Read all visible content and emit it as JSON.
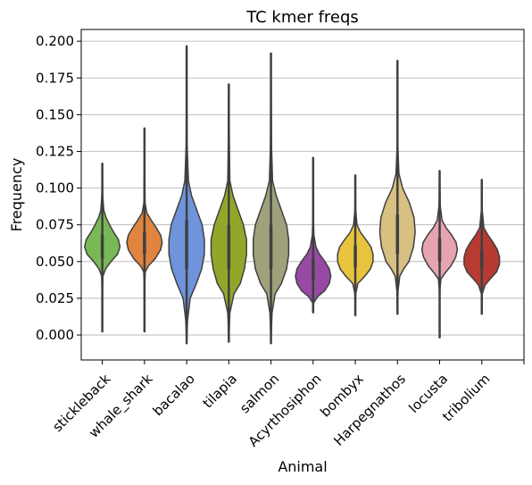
{
  "chart_data": {
    "type": "violin",
    "title": "TC kmer freqs",
    "xlabel": "Animal",
    "ylabel": "Frequency",
    "ylim": [
      -0.017,
      0.208
    ],
    "yticks": [
      "0.000",
      "0.025",
      "0.050",
      "0.075",
      "0.100",
      "0.125",
      "0.150",
      "0.175",
      "0.200"
    ],
    "grid": "horizontal",
    "series": [
      {
        "name": "stickleback",
        "color": "#78b956",
        "min": 0.002,
        "max": 0.117,
        "q1": 0.052,
        "median": 0.06,
        "q3": 0.068,
        "profile": [
          [
            0.002,
            0.0
          ],
          [
            0.03,
            0.01
          ],
          [
            0.04,
            0.03
          ],
          [
            0.045,
            0.16
          ],
          [
            0.05,
            0.42
          ],
          [
            0.055,
            0.74
          ],
          [
            0.06,
            0.86
          ],
          [
            0.065,
            0.78
          ],
          [
            0.07,
            0.55
          ],
          [
            0.075,
            0.35
          ],
          [
            0.08,
            0.18
          ],
          [
            0.085,
            0.07
          ],
          [
            0.095,
            0.02
          ],
          [
            0.117,
            0.0
          ]
        ]
      },
      {
        "name": "whale_shark",
        "color": "#e0843f",
        "min": 0.002,
        "max": 0.141,
        "q1": 0.055,
        "median": 0.063,
        "q3": 0.07,
        "profile": [
          [
            0.002,
            0.0
          ],
          [
            0.035,
            0.01
          ],
          [
            0.043,
            0.04
          ],
          [
            0.047,
            0.2
          ],
          [
            0.052,
            0.55
          ],
          [
            0.058,
            0.82
          ],
          [
            0.063,
            0.9
          ],
          [
            0.068,
            0.82
          ],
          [
            0.073,
            0.6
          ],
          [
            0.078,
            0.35
          ],
          [
            0.083,
            0.12
          ],
          [
            0.09,
            0.03
          ],
          [
            0.11,
            0.01
          ],
          [
            0.141,
            0.0
          ]
        ]
      },
      {
        "name": "bacalao",
        "color": "#6f94dc",
        "min": -0.006,
        "max": 0.197,
        "q1": 0.045,
        "median": 0.06,
        "q3": 0.078,
        "profile": [
          [
            -0.006,
            0.0
          ],
          [
            0.01,
            0.02
          ],
          [
            0.025,
            0.08
          ],
          [
            0.035,
            0.22
          ],
          [
            0.045,
            0.34
          ],
          [
            0.055,
            0.4
          ],
          [
            0.065,
            0.4
          ],
          [
            0.075,
            0.35
          ],
          [
            0.085,
            0.23
          ],
          [
            0.095,
            0.11
          ],
          [
            0.105,
            0.04
          ],
          [
            0.13,
            0.01
          ],
          [
            0.197,
            0.0
          ]
        ]
      },
      {
        "name": "tilapia",
        "color": "#92a72a",
        "min": -0.005,
        "max": 0.171,
        "q1": 0.045,
        "median": 0.06,
        "q3": 0.075,
        "profile": [
          [
            -0.005,
            0.0
          ],
          [
            0.015,
            0.02
          ],
          [
            0.028,
            0.1
          ],
          [
            0.035,
            0.22
          ],
          [
            0.045,
            0.3
          ],
          [
            0.055,
            0.34
          ],
          [
            0.065,
            0.34
          ],
          [
            0.075,
            0.28
          ],
          [
            0.085,
            0.18
          ],
          [
            0.095,
            0.08
          ],
          [
            0.105,
            0.02
          ],
          [
            0.13,
            0.01
          ],
          [
            0.171,
            0.0
          ]
        ]
      },
      {
        "name": "salmon",
        "color": "#a0a07b",
        "min": -0.006,
        "max": 0.192,
        "q1": 0.045,
        "median": 0.058,
        "q3": 0.075,
        "profile": [
          [
            -0.006,
            0.0
          ],
          [
            0.015,
            0.02
          ],
          [
            0.028,
            0.08
          ],
          [
            0.035,
            0.2
          ],
          [
            0.045,
            0.3
          ],
          [
            0.055,
            0.34
          ],
          [
            0.065,
            0.34
          ],
          [
            0.075,
            0.3
          ],
          [
            0.085,
            0.2
          ],
          [
            0.095,
            0.1
          ],
          [
            0.105,
            0.03
          ],
          [
            0.13,
            0.01
          ],
          [
            0.192,
            0.0
          ]
        ]
      },
      {
        "name": "Acyrthosiphon",
        "color": "#964aa4",
        "min": 0.015,
        "max": 0.121,
        "q1": 0.037,
        "median": 0.044,
        "q3": 0.052,
        "profile": [
          [
            0.015,
            0.0
          ],
          [
            0.022,
            0.03
          ],
          [
            0.026,
            0.22
          ],
          [
            0.03,
            0.58
          ],
          [
            0.035,
            0.82
          ],
          [
            0.04,
            0.9
          ],
          [
            0.045,
            0.82
          ],
          [
            0.05,
            0.6
          ],
          [
            0.055,
            0.32
          ],
          [
            0.06,
            0.14
          ],
          [
            0.068,
            0.04
          ],
          [
            0.08,
            0.01
          ],
          [
            0.121,
            0.0
          ]
        ]
      },
      {
        "name": "bombyx",
        "color": "#e8c43e",
        "min": 0.013,
        "max": 0.109,
        "q1": 0.046,
        "median": 0.053,
        "q3": 0.061,
        "profile": [
          [
            0.013,
            0.0
          ],
          [
            0.028,
            0.02
          ],
          [
            0.035,
            0.12
          ],
          [
            0.04,
            0.45
          ],
          [
            0.045,
            0.72
          ],
          [
            0.05,
            0.84
          ],
          [
            0.055,
            0.84
          ],
          [
            0.06,
            0.74
          ],
          [
            0.065,
            0.5
          ],
          [
            0.07,
            0.24
          ],
          [
            0.075,
            0.08
          ],
          [
            0.085,
            0.02
          ],
          [
            0.109,
            0.0
          ]
        ]
      },
      {
        "name": "Harpegnathos",
        "color": "#d8bf82",
        "min": 0.014,
        "max": 0.187,
        "q1": 0.055,
        "median": 0.066,
        "q3": 0.082,
        "profile": [
          [
            0.014,
            0.0
          ],
          [
            0.03,
            0.02
          ],
          [
            0.04,
            0.08
          ],
          [
            0.045,
            0.22
          ],
          [
            0.05,
            0.4
          ],
          [
            0.06,
            0.56
          ],
          [
            0.07,
            0.62
          ],
          [
            0.08,
            0.58
          ],
          [
            0.09,
            0.42
          ],
          [
            0.1,
            0.18
          ],
          [
            0.11,
            0.05
          ],
          [
            0.13,
            0.01
          ],
          [
            0.187,
            0.0
          ]
        ]
      },
      {
        "name": "locusta",
        "color": "#e6a3b0",
        "min": -0.002,
        "max": 0.112,
        "q1": 0.05,
        "median": 0.058,
        "q3": 0.066,
        "profile": [
          [
            -0.002,
            0.0
          ],
          [
            0.03,
            0.01
          ],
          [
            0.038,
            0.06
          ],
          [
            0.042,
            0.26
          ],
          [
            0.047,
            0.56
          ],
          [
            0.053,
            0.8
          ],
          [
            0.058,
            0.88
          ],
          [
            0.063,
            0.82
          ],
          [
            0.068,
            0.6
          ],
          [
            0.073,
            0.32
          ],
          [
            0.078,
            0.12
          ],
          [
            0.088,
            0.03
          ],
          [
            0.112,
            0.0
          ]
        ]
      },
      {
        "name": "tribolium",
        "color": "#b73a33",
        "min": 0.014,
        "max": 0.106,
        "q1": 0.045,
        "median": 0.051,
        "q3": 0.058,
        "profile": [
          [
            0.014,
            0.0
          ],
          [
            0.028,
            0.02
          ],
          [
            0.034,
            0.16
          ],
          [
            0.038,
            0.4
          ],
          [
            0.043,
            0.72
          ],
          [
            0.048,
            0.86
          ],
          [
            0.053,
            0.86
          ],
          [
            0.058,
            0.76
          ],
          [
            0.063,
            0.55
          ],
          [
            0.068,
            0.3
          ],
          [
            0.073,
            0.1
          ],
          [
            0.085,
            0.02
          ],
          [
            0.106,
            0.0
          ]
        ]
      }
    ]
  }
}
